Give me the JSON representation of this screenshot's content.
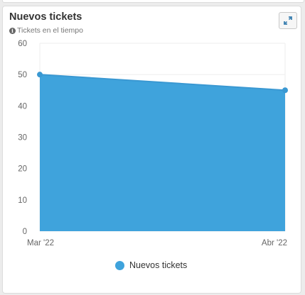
{
  "card": {
    "title": "Nuevos tickets",
    "subtitle": "Tickets en el tiempo",
    "info_icon": "info-icon",
    "expand_icon": "expand-icon"
  },
  "colors": {
    "series": "#3fa3dc",
    "line": "#3a98d2",
    "axis_text": "#666666",
    "grid": "#eeeeee"
  },
  "chart_data": {
    "type": "area",
    "title": "Nuevos tickets",
    "subtitle": "Tickets en el tiempo",
    "xlabel": "",
    "ylabel": "",
    "categories": [
      "Mar '22",
      "Abr '22"
    ],
    "series": [
      {
        "name": "Nuevos tickets",
        "values": [
          50,
          45
        ]
      }
    ],
    "ylim": [
      0,
      60
    ],
    "yticks": [
      0,
      10,
      20,
      30,
      40,
      50,
      60
    ],
    "grid": true,
    "legend": "bottom-center"
  }
}
